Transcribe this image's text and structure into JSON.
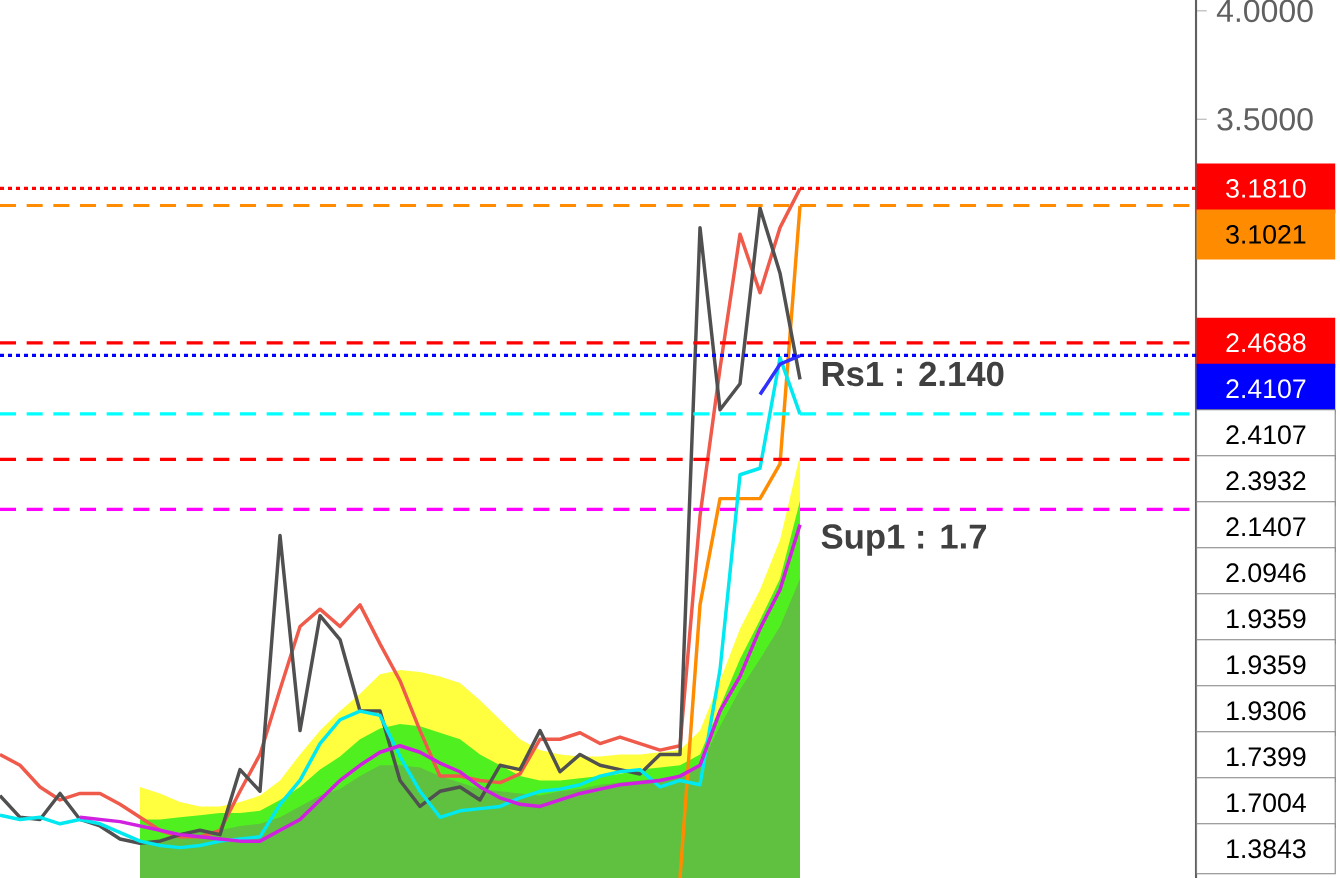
{
  "chart_data": {
    "type": "line",
    "categories": [
      null,
      null,
      null,
      null,
      null,
      null,
      null,
      null,
      null,
      null,
      null,
      null,
      null,
      null,
      null,
      null,
      null,
      null,
      null,
      null,
      null,
      null,
      null,
      null,
      null,
      null,
      null,
      null,
      null,
      null,
      null,
      null,
      null,
      null,
      null,
      null,
      null,
      null,
      null,
      null,
      null
    ],
    "ylim": [
      0,
      4.05
    ],
    "yticks": [
      {
        "value": 4.0,
        "label": "4.0000"
      },
      {
        "value": 3.5,
        "label": "3.5000"
      }
    ],
    "series": [
      {
        "type": "area",
        "color": "#ffff40",
        "values": [
          null,
          null,
          null,
          null,
          null,
          null,
          null,
          0.42,
          0.39,
          0.35,
          0.33,
          0.33,
          0.35,
          0.38,
          0.45,
          0.57,
          0.68,
          0.77,
          0.85,
          0.94,
          0.96,
          0.95,
          0.93,
          0.9,
          0.82,
          0.73,
          0.64,
          0.59,
          0.57,
          0.56,
          0.56,
          0.57,
          0.57,
          0.58,
          0.59,
          0.68,
          0.91,
          1.15,
          1.33,
          1.56,
          1.95
        ]
      },
      {
        "type": "area",
        "color": "#50f020",
        "values": [
          null,
          null,
          null,
          null,
          null,
          null,
          null,
          0.27,
          0.27,
          0.28,
          0.29,
          0.3,
          0.3,
          0.31,
          0.36,
          0.42,
          0.5,
          0.56,
          0.64,
          0.69,
          0.71,
          0.7,
          0.67,
          0.64,
          0.57,
          0.52,
          0.47,
          0.45,
          0.45,
          0.46,
          0.47,
          0.48,
          0.5,
          0.51,
          0.52,
          0.57,
          0.79,
          1.01,
          1.19,
          1.38,
          1.74
        ]
      },
      {
        "type": "area",
        "color": "#60c040",
        "values": [
          null,
          null,
          null,
          null,
          null,
          null,
          null,
          0.16,
          0.18,
          0.2,
          0.21,
          0.22,
          0.24,
          0.25,
          0.28,
          0.33,
          0.38,
          0.41,
          0.47,
          0.52,
          0.52,
          0.51,
          0.47,
          0.44,
          0.41,
          0.4,
          0.39,
          0.38,
          0.4,
          0.41,
          0.43,
          0.44,
          0.45,
          0.46,
          0.47,
          0.52,
          0.7,
          0.87,
          1.01,
          1.16,
          1.38
        ]
      },
      {
        "color": "#ff8c00",
        "values": [
          null,
          null,
          null,
          null,
          null,
          null,
          null,
          null,
          null,
          null,
          null,
          null,
          null,
          null,
          null,
          null,
          null,
          null,
          null,
          null,
          null,
          null,
          null,
          null,
          null,
          null,
          null,
          null,
          null,
          null,
          null,
          null,
          null,
          null,
          0.0,
          1.26,
          1.75,
          1.75,
          1.75,
          1.91,
          3.1
        ]
      },
      {
        "color": "#f05a4a",
        "values": [
          0.57,
          0.52,
          0.42,
          0.36,
          0.39,
          0.39,
          0.34,
          0.28,
          0.22,
          0.19,
          0.19,
          0.22,
          0.4,
          0.57,
          0.87,
          1.16,
          1.24,
          1.16,
          1.26,
          1.08,
          0.91,
          0.68,
          0.47,
          0.47,
          0.45,
          0.44,
          0.48,
          0.64,
          0.64,
          0.67,
          0.62,
          0.65,
          0.62,
          0.59,
          0.61,
          1.67,
          2.35,
          2.97,
          2.7,
          3.0,
          3.18
        ]
      },
      {
        "color": "#505050",
        "values": [
          0.38,
          0.28,
          0.27,
          0.39,
          0.27,
          0.24,
          0.18,
          0.16,
          0.17,
          0.2,
          0.22,
          0.2,
          0.5,
          0.4,
          1.58,
          0.68,
          1.21,
          1.1,
          0.77,
          0.77,
          0.45,
          0.33,
          0.4,
          0.42,
          0.36,
          0.52,
          0.5,
          0.68,
          0.49,
          0.57,
          0.52,
          0.5,
          0.48,
          0.57,
          0.57,
          3.0,
          2.16,
          2.28,
          3.09,
          2.79,
          2.3
        ]
      },
      {
        "color": "#00e8f0",
        "values": [
          0.29,
          0.27,
          0.28,
          0.25,
          0.27,
          0.25,
          0.21,
          0.17,
          0.15,
          0.14,
          0.15,
          0.17,
          0.18,
          0.19,
          0.34,
          0.45,
          0.62,
          0.73,
          0.77,
          0.75,
          0.56,
          0.4,
          0.28,
          0.31,
          0.32,
          0.33,
          0.37,
          0.4,
          0.41,
          0.43,
          0.47,
          0.49,
          0.5,
          0.42,
          0.45,
          0.43,
          0.96,
          1.86,
          1.89,
          2.4,
          2.14
        ]
      },
      {
        "color": "#d020e0",
        "values": [
          null,
          null,
          null,
          null,
          0.28,
          0.27,
          0.26,
          0.24,
          0.22,
          0.2,
          0.19,
          0.18,
          0.17,
          0.17,
          0.22,
          0.27,
          0.36,
          0.45,
          0.52,
          0.58,
          0.61,
          0.58,
          0.53,
          0.49,
          0.42,
          0.37,
          0.34,
          0.33,
          0.36,
          0.39,
          0.41,
          0.43,
          0.44,
          0.45,
          0.47,
          0.52,
          0.77,
          0.93,
          1.15,
          1.33,
          1.63
        ]
      },
      {
        "color": "#3030ff",
        "values": [
          null,
          null,
          null,
          null,
          null,
          null,
          null,
          null,
          null,
          null,
          null,
          null,
          null,
          null,
          null,
          null,
          null,
          null,
          null,
          null,
          null,
          null,
          null,
          null,
          null,
          null,
          null,
          null,
          null,
          null,
          null,
          null,
          null,
          null,
          null,
          null,
          null,
          null,
          2.23,
          2.37,
          2.41
        ]
      }
    ],
    "ref_lines": [
      {
        "axis": "y",
        "value": 3.181,
        "label": "3.1810",
        "color": "#ff0000",
        "line_style": "dotted"
      },
      {
        "axis": "y",
        "value": 3.1021,
        "label": "3.1021",
        "color": "#ff8c00",
        "line_style": "dashed"
      },
      {
        "axis": "y",
        "value": 2.4688,
        "label": "2.4688",
        "color": "#ff0000",
        "line_style": "dashed"
      },
      {
        "axis": "y",
        "value": 2.4107,
        "label": "2.4107",
        "color": "#0000ff",
        "line_style": "dotted"
      },
      {
        "axis": "y",
        "value": 2.1407,
        "color": "#00ffff",
        "line_style": "dashed"
      },
      {
        "axis": "y",
        "value": 1.9306,
        "color": "#ff0000",
        "line_style": "dashed"
      },
      {
        "axis": "y",
        "value": 1.7004,
        "color": "#ff00ff",
        "line_style": "dashed"
      }
    ],
    "annotations": [
      "Rs1 : 2.140",
      "Sup1 : 1.7",
      "2.4107",
      "2.3932",
      "2.1407",
      "2.0946",
      "1.9359",
      "1.9359",
      "1.9306",
      "1.7399",
      "1.7004",
      "1.3843"
    ]
  }
}
